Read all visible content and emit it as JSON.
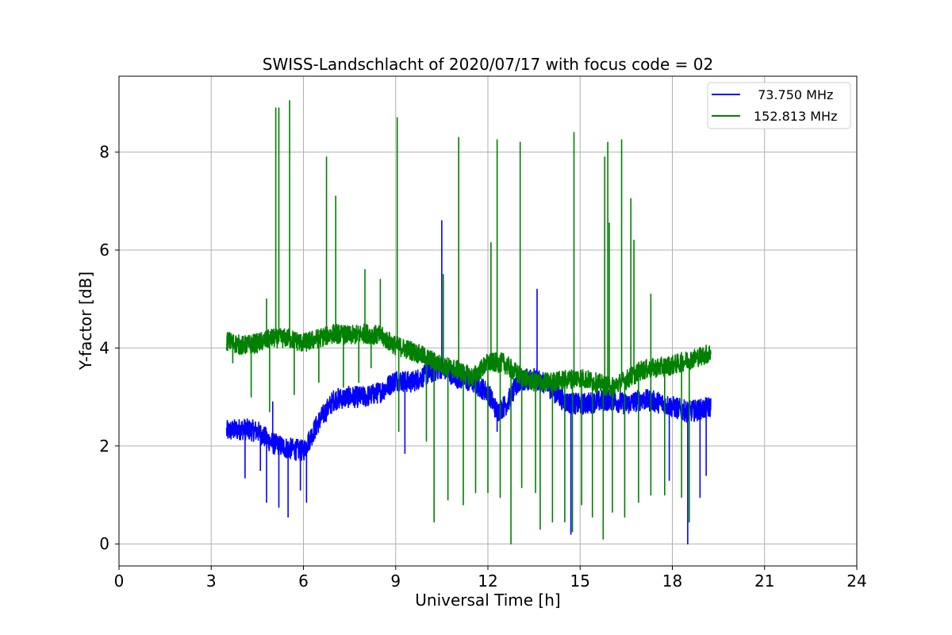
{
  "chart_data": {
    "type": "line",
    "title": "SWISS-Landschlacht of 2020/07/17 with focus code = 02",
    "xlabel": "Universal Time [h]",
    "ylabel": "Y-factor [dB]",
    "xlim": [
      0,
      24
    ],
    "ylim": [
      -0.45,
      9.55
    ],
    "xticks": [
      0,
      3,
      6,
      9,
      12,
      15,
      18,
      21,
      24
    ],
    "yticks": [
      0,
      2,
      4,
      6,
      8
    ],
    "grid": true,
    "legend_position": "top-right",
    "series": [
      {
        "name": " 73.750 MHz",
        "color": "#0000ff",
        "baseline": [
          [
            3.5,
            2.3
          ],
          [
            4.0,
            2.35
          ],
          [
            4.5,
            2.3
          ],
          [
            5.0,
            2.05
          ],
          [
            5.5,
            1.95
          ],
          [
            6.0,
            1.9
          ],
          [
            6.5,
            2.5
          ],
          [
            7.0,
            2.95
          ],
          [
            7.5,
            3.0
          ],
          [
            8.0,
            3.0
          ],
          [
            8.5,
            3.1
          ],
          [
            9.0,
            3.35
          ],
          [
            9.5,
            3.3
          ],
          [
            10.0,
            3.45
          ],
          [
            10.5,
            3.6
          ],
          [
            11.0,
            3.4
          ],
          [
            11.5,
            3.3
          ],
          [
            12.0,
            3.1
          ],
          [
            12.3,
            2.7
          ],
          [
            12.6,
            2.85
          ],
          [
            13.0,
            3.3
          ],
          [
            13.5,
            3.4
          ],
          [
            14.0,
            3.2
          ],
          [
            14.5,
            2.9
          ],
          [
            15.0,
            2.85
          ],
          [
            15.5,
            2.9
          ],
          [
            16.0,
            2.95
          ],
          [
            16.5,
            2.85
          ],
          [
            17.0,
            2.95
          ],
          [
            17.5,
            2.9
          ],
          [
            18.0,
            2.8
          ],
          [
            18.5,
            2.7
          ],
          [
            19.0,
            2.75
          ],
          [
            19.25,
            2.8
          ]
        ],
        "spikes": [
          [
            4.1,
            1.35
          ],
          [
            4.6,
            1.5
          ],
          [
            4.8,
            0.85
          ],
          [
            5.0,
            2.9
          ],
          [
            5.2,
            0.75
          ],
          [
            5.5,
            0.55
          ],
          [
            5.9,
            1.1
          ],
          [
            6.1,
            0.85
          ],
          [
            9.3,
            1.85
          ],
          [
            10.5,
            6.6
          ],
          [
            12.3,
            2.3
          ],
          [
            13.6,
            5.2
          ],
          [
            14.7,
            0.2
          ],
          [
            17.9,
            1.3
          ],
          [
            18.5,
            0.0
          ],
          [
            18.9,
            0.95
          ],
          [
            19.1,
            1.4
          ]
        ],
        "noise": 0.22
      },
      {
        "name": "152.813 MHz",
        "color": "#008000",
        "baseline": [
          [
            3.5,
            4.15
          ],
          [
            4.0,
            4.05
          ],
          [
            4.5,
            4.1
          ],
          [
            5.0,
            4.2
          ],
          [
            5.5,
            4.2
          ],
          [
            6.0,
            4.1
          ],
          [
            6.5,
            4.2
          ],
          [
            7.0,
            4.3
          ],
          [
            7.5,
            4.25
          ],
          [
            8.0,
            4.3
          ],
          [
            8.5,
            4.25
          ],
          [
            9.0,
            4.05
          ],
          [
            9.5,
            3.95
          ],
          [
            10.0,
            3.8
          ],
          [
            10.5,
            3.65
          ],
          [
            11.0,
            3.55
          ],
          [
            11.5,
            3.4
          ],
          [
            12.0,
            3.7
          ],
          [
            12.5,
            3.7
          ],
          [
            13.0,
            3.45
          ],
          [
            13.5,
            3.3
          ],
          [
            14.0,
            3.3
          ],
          [
            14.5,
            3.35
          ],
          [
            15.0,
            3.4
          ],
          [
            15.5,
            3.3
          ],
          [
            16.0,
            3.2
          ],
          [
            16.5,
            3.35
          ],
          [
            17.0,
            3.55
          ],
          [
            17.5,
            3.6
          ],
          [
            18.0,
            3.65
          ],
          [
            18.5,
            3.75
          ],
          [
            19.0,
            3.85
          ],
          [
            19.25,
            3.9
          ]
        ],
        "spikes": [
          [
            4.8,
            5.0
          ],
          [
            5.1,
            8.9
          ],
          [
            5.2,
            8.9
          ],
          [
            5.55,
            9.05
          ],
          [
            6.75,
            7.9
          ],
          [
            7.05,
            7.1
          ],
          [
            8.0,
            5.6
          ],
          [
            8.5,
            5.4
          ],
          [
            9.05,
            8.7
          ],
          [
            10.55,
            5.5
          ],
          [
            11.05,
            8.3
          ],
          [
            12.1,
            6.15
          ],
          [
            12.3,
            8.25
          ],
          [
            13.05,
            8.2
          ],
          [
            14.8,
            8.4
          ],
          [
            15.8,
            7.9
          ],
          [
            15.9,
            8.2
          ],
          [
            15.95,
            6.55
          ],
          [
            16.35,
            8.25
          ],
          [
            16.65,
            7.05
          ],
          [
            16.75,
            6.2
          ],
          [
            17.3,
            5.1
          ],
          [
            3.7,
            3.7
          ],
          [
            4.3,
            3.0
          ],
          [
            4.9,
            2.7
          ],
          [
            5.7,
            3.05
          ],
          [
            6.5,
            3.3
          ],
          [
            7.3,
            3.2
          ],
          [
            7.8,
            3.3
          ],
          [
            8.2,
            3.6
          ],
          [
            9.1,
            2.3
          ],
          [
            10.0,
            2.1
          ],
          [
            10.25,
            0.45
          ],
          [
            10.7,
            0.9
          ],
          [
            11.2,
            0.8
          ],
          [
            11.6,
            1.05
          ],
          [
            12.0,
            1.05
          ],
          [
            12.4,
            0.95
          ],
          [
            12.75,
            0.0
          ],
          [
            13.1,
            1.15
          ],
          [
            13.55,
            1.05
          ],
          [
            13.7,
            0.3
          ],
          [
            14.1,
            0.45
          ],
          [
            14.5,
            0.45
          ],
          [
            14.75,
            0.25
          ],
          [
            15.05,
            0.8
          ],
          [
            15.4,
            0.55
          ],
          [
            15.75,
            0.1
          ],
          [
            16.05,
            0.65
          ],
          [
            16.45,
            0.55
          ],
          [
            16.9,
            0.85
          ],
          [
            17.3,
            1.0
          ],
          [
            17.75,
            1.0
          ],
          [
            18.3,
            0.95
          ],
          [
            18.55,
            0.45
          ]
        ],
        "noise": 0.2
      }
    ]
  }
}
